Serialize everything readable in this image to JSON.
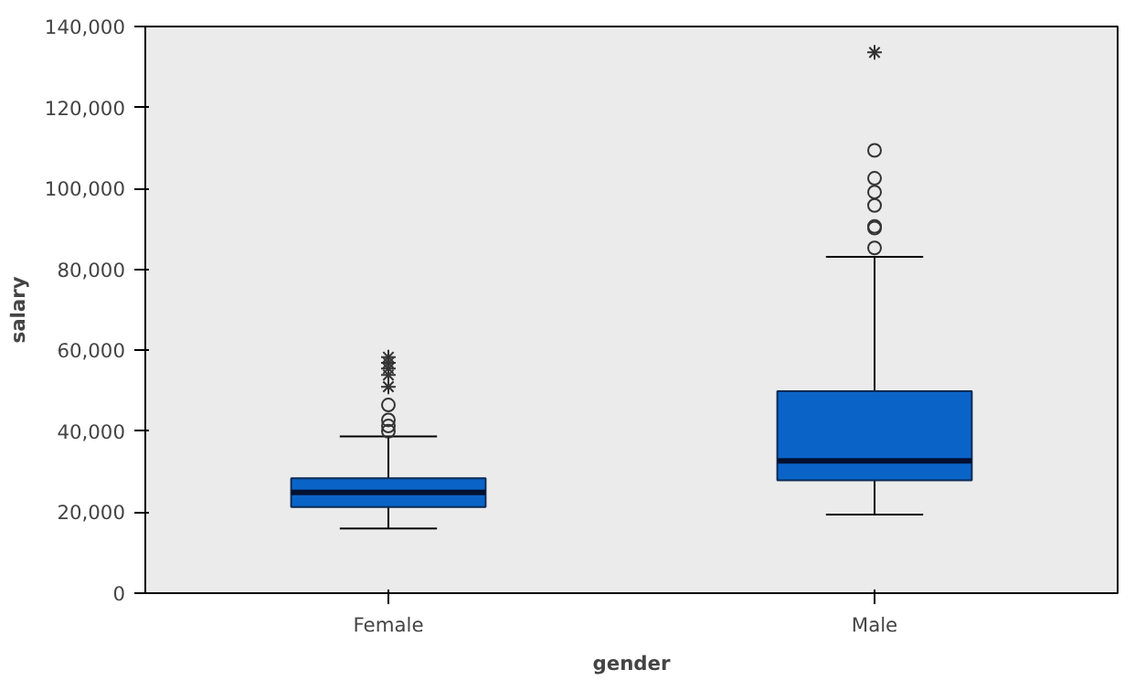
{
  "chart_data": {
    "type": "box",
    "xlabel": "gender",
    "ylabel": "salary",
    "categories": [
      "Female",
      "Male"
    ],
    "color": "#0a64c8",
    "boxes": [
      {
        "low": 16000,
        "q1": 21300,
        "median": 24900,
        "q3": 28400,
        "high": 38700,
        "outliers": [
          40000,
          41300,
          42800,
          46500,
          51000,
          53900,
          55500,
          56900,
          58300
        ]
      },
      {
        "low": 19400,
        "q1": 27900,
        "median": 32700,
        "q3": 49900,
        "high": 83100,
        "outliers": [
          85300,
          90200,
          90600,
          95800,
          99100,
          102500,
          109400,
          133600
        ]
      }
    ],
    "ylim": [
      0,
      140000
    ],
    "yticks": [
      {
        "value": 0,
        "label": "0"
      },
      {
        "value": 20000,
        "label": "20,000"
      },
      {
        "value": 40000,
        "label": "40,000"
      },
      {
        "value": 60000,
        "label": "60,000"
      },
      {
        "value": 80000,
        "label": "80,000"
      },
      {
        "value": 100000,
        "label": "100,000"
      },
      {
        "value": 120000,
        "label": "120,000"
      },
      {
        "value": 140000,
        "label": "140,000"
      }
    ],
    "grid": false
  }
}
